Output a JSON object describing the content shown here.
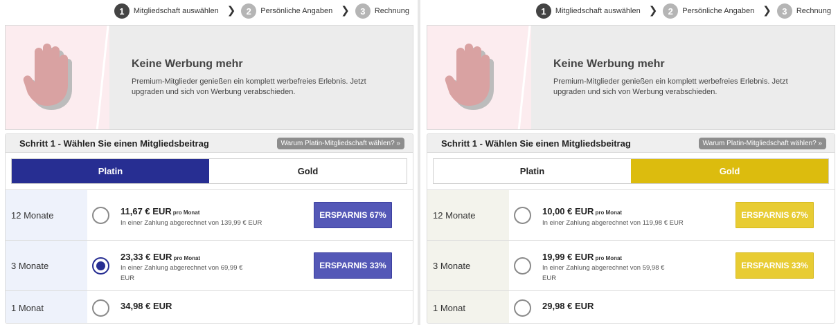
{
  "steps": [
    {
      "num": "1",
      "label": "Mitgliedschaft auswählen"
    },
    {
      "num": "2",
      "label": "Persönliche Angaben"
    },
    {
      "num": "3",
      "label": "Rechnung"
    }
  ],
  "banner": {
    "title": "Keine Werbung mehr",
    "text": "Premium-Mitglieder genießen ein komplett werbefreies Erlebnis. Jetzt upgraden und sich von Werbung verabschieden."
  },
  "step1": {
    "title": "Schritt 1 - Wählen Sie einen Mitgliedsbeitrag",
    "why_button": "Warum Platin-Mitgliedschaft wählen? »"
  },
  "tabs": {
    "platin": "Platin",
    "gold": "Gold"
  },
  "colors": {
    "platin": "#272e92",
    "gold": "#dcbc0e",
    "platin_save": "#5458b7",
    "gold_save": "#e8cc33"
  },
  "platin": {
    "selected_tab": "Platin",
    "rows": [
      {
        "label": "12 Monate",
        "price": "11,67 € EUR",
        "per": "pro Monat",
        "sub": "In einer Zahlung abgerechnet von 139,99 € EUR",
        "savings": "ERSPARNIS 67%",
        "checked": false
      },
      {
        "label": "3 Monate",
        "price": "23,33 € EUR",
        "per": "pro Monat",
        "sub": "In einer Zahlung abgerechnet von 69,99 € EUR",
        "savings": "ERSPARNIS 33%",
        "checked": true
      },
      {
        "label": "1 Monat",
        "price": "34,98 € EUR",
        "checked": false
      }
    ]
  },
  "gold": {
    "selected_tab": "Gold",
    "rows": [
      {
        "label": "12 Monate",
        "price": "10,00 € EUR",
        "per": "pro Monat",
        "sub": "In einer Zahlung abgerechnet von 119,98 € EUR",
        "savings": "ERSPARNIS 67%",
        "checked": false
      },
      {
        "label": "3 Monate",
        "price": "19,99 € EUR",
        "per": "pro Monat",
        "sub": "In einer Zahlung abgerechnet von 59,98 € EUR",
        "savings": "ERSPARNIS 33%",
        "checked": false
      },
      {
        "label": "1 Monat",
        "price": "29,98 € EUR",
        "checked": false
      }
    ]
  }
}
